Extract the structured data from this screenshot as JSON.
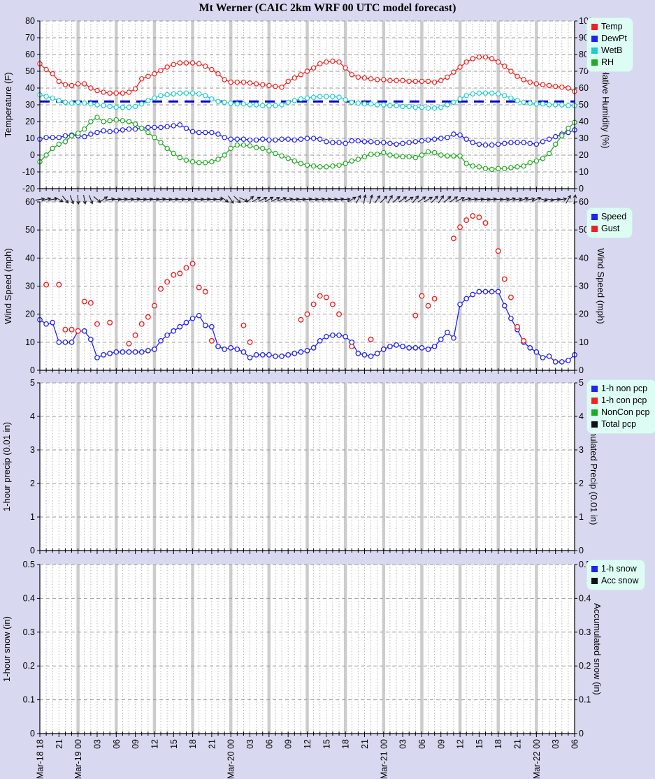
{
  "title": "Mt Werner (CAIC 2km WRF 00 UTC model forecast)",
  "colors": {
    "background": "#d8d8f0",
    "plot_background": "#ffffff",
    "grid_minor": "#b3b3b3",
    "grid_major_band": "#cccccc",
    "grid_horizontal": "#9a9a9a",
    "axis": "#000000",
    "legend_background": "#ddfdf4",
    "temp": "#ee2222",
    "dewpt": "#2222ee",
    "wetb": "#22cccc",
    "rh": "#22aa22",
    "speed": "#2222ee",
    "gust": "#ee2222",
    "freezing_line": "#0000cc",
    "wind_barb": "#1a1a1a"
  },
  "x_axis": {
    "hours_total": 84,
    "tick_every_hours": 3,
    "tick_labels": [
      "Mar-18 18",
      "21",
      "Mar-19 00",
      "03",
      "06",
      "09",
      "12",
      "15",
      "18",
      "21",
      "Mar-20 00",
      "03",
      "06",
      "09",
      "12",
      "15",
      "18",
      "21",
      "Mar-21 00",
      "03",
      "06",
      "09",
      "12",
      "15",
      "18",
      "21",
      "Mar-22 00",
      "03",
      "06"
    ]
  },
  "panels": {
    "temp": {
      "left_axis_label": "Temperature (F)",
      "right_axis_label": "Relative Humidity (%)",
      "left_ticks": [
        "80",
        "70",
        "60",
        "50",
        "40",
        "30",
        "20",
        "10",
        "0",
        "-10",
        "-20"
      ],
      "right_ticks": [
        "100",
        "90",
        "80",
        "70",
        "60",
        "50",
        "40",
        "30",
        "20",
        "10",
        "0"
      ],
      "legend": [
        {
          "label": "Temp",
          "color": "#ee2222"
        },
        {
          "label": "DewPt",
          "color": "#2222ee"
        },
        {
          "label": "WetB",
          "color": "#22cccc"
        },
        {
          "label": "RH",
          "color": "#22aa22"
        }
      ]
    },
    "wind": {
      "left_axis_label": "Wind Speed (mph)",
      "right_axis_label": "Wind Speed (mph)",
      "left_ticks": [
        "60",
        "50",
        "40",
        "30",
        "20",
        "10",
        "0"
      ],
      "right_ticks": [
        "60",
        "50",
        "40",
        "30",
        "20",
        "10",
        "0"
      ],
      "legend": [
        {
          "label": "Speed",
          "color": "#2222ee"
        },
        {
          "label": "Gust",
          "color": "#ee2222"
        }
      ]
    },
    "precip": {
      "left_axis_label": "1-hour precip (0.01 in)",
      "right_axis_label": "Accumulated Precip (0.01 in)",
      "left_ticks": [
        "5",
        "4",
        "3",
        "2",
        "1",
        "0"
      ],
      "right_ticks": [
        "5",
        "4",
        "3",
        "2",
        "1",
        "0"
      ],
      "legend": [
        {
          "label": "1-h non pcp",
          "color": "#2222ee"
        },
        {
          "label": "1-h con pcp",
          "color": "#ee2222"
        },
        {
          "label": "NonCon pcp",
          "color": "#22aa22"
        },
        {
          "label": "Total pcp",
          "color": "#111111"
        }
      ]
    },
    "snow": {
      "left_axis_label": "1-hour snow (in)",
      "right_axis_label": "Accumulated snow (in)",
      "left_ticks": [
        "0.5",
        "0.4",
        "0.3",
        "0.2",
        "0.1",
        "0"
      ],
      "right_ticks": [
        "0.5",
        "0.4",
        "0.3",
        "0.2",
        "0.1",
        "0"
      ],
      "legend": [
        {
          "label": "1-h snow",
          "color": "#2222ee"
        },
        {
          "label": "Acc snow",
          "color": "#111111"
        }
      ]
    }
  },
  "chart_data": [
    {
      "type": "line",
      "panel": "temp",
      "title": "Temperature, dew point, wet bulb (left axis, F) and relative humidity (right axis, %)",
      "x_unit": "hours since Mar-18 18:00 (hourly points, 0-84)",
      "ylim_left": [
        -20,
        80
      ],
      "ylim_right": [
        0,
        100
      ],
      "grid": true,
      "legend_position": "top-right",
      "annotations": {
        "freezing_line_f": 32
      },
      "series": [
        {
          "name": "Temp",
          "axis": "left",
          "color": "#ee2222",
          "values": [
            54.5,
            51,
            48.5,
            44,
            42,
            41.5,
            42.5,
            42.5,
            40,
            38.5,
            37.5,
            37,
            37,
            37,
            37.5,
            39.5,
            45.5,
            47,
            48.5,
            50.5,
            52.5,
            54,
            55,
            55,
            55,
            54.5,
            53,
            51,
            48.5,
            45,
            43.5,
            43.5,
            43.5,
            43,
            42.5,
            42,
            41.5,
            41,
            40.5,
            44,
            46,
            48,
            50,
            52,
            54.5,
            55.5,
            56,
            55.5,
            52,
            48,
            46.5,
            46,
            45.5,
            45,
            45,
            44.5,
            44.5,
            44.5,
            44,
            44,
            44,
            44,
            43.5,
            44.5,
            46.5,
            49.5,
            52.5,
            55.5,
            57.5,
            58.5,
            58.5,
            57.5,
            55.5,
            53,
            50,
            47,
            45,
            43.5,
            42.5,
            42,
            41.5,
            41,
            40.5,
            40,
            38
          ]
        },
        {
          "name": "DewPt",
          "axis": "left",
          "color": "#2222ee",
          "values": [
            9.5,
            10.5,
            10.5,
            10.5,
            11.5,
            12,
            11.5,
            11,
            12.5,
            13.5,
            14.5,
            14,
            14.5,
            15,
            15.5,
            15.5,
            16,
            16.5,
            16.5,
            16.5,
            17,
            17.5,
            18,
            16,
            14,
            13.5,
            13.5,
            13.5,
            12.5,
            10.5,
            9.5,
            9.5,
            9.5,
            9,
            9,
            9.5,
            9,
            9,
            9.5,
            9.5,
            9,
            9.5,
            10,
            10,
            9.5,
            8,
            7.5,
            7.5,
            7,
            8.5,
            8.5,
            8,
            8,
            7.5,
            7.5,
            7,
            6.5,
            7,
            7.5,
            8,
            8.5,
            9,
            9.5,
            10,
            10.5,
            12.5,
            12,
            9.5,
            7.5,
            6.5,
            6,
            6,
            6.5,
            7,
            7.5,
            7.5,
            7.5,
            7,
            6.5,
            8,
            9.5,
            11,
            12.5,
            13.5,
            15
          ]
        },
        {
          "name": "WetB",
          "axis": "left",
          "color": "#22cccc",
          "values": [
            36,
            35,
            34,
            32.5,
            31.5,
            31,
            31.5,
            31,
            30.5,
            30,
            29.5,
            29,
            28.5,
            28.5,
            28.5,
            29,
            30.5,
            32.5,
            34,
            35.5,
            36,
            36.5,
            37,
            37,
            37,
            36.5,
            35.5,
            33.5,
            32,
            31.5,
            31,
            30.5,
            30.5,
            30,
            30,
            29.5,
            29.5,
            29.5,
            30,
            31.5,
            32.5,
            33.5,
            34,
            34.5,
            35,
            35,
            35,
            34.5,
            33,
            31.5,
            31,
            30.5,
            30.5,
            30,
            30,
            29.5,
            29.5,
            29,
            29,
            28.5,
            28.5,
            28,
            28,
            28.5,
            30,
            31.5,
            33.5,
            35.5,
            36.5,
            37,
            37,
            37,
            36.5,
            35.5,
            34,
            32.5,
            31.5,
            31,
            30.5,
            30.5,
            30,
            30,
            30,
            29.5,
            29.5
          ]
        },
        {
          "name": "RH",
          "axis": "right",
          "color": "#22aa22",
          "values": [
            16,
            20,
            24,
            26.5,
            28,
            31.5,
            33,
            35.5,
            40,
            42.5,
            40,
            40.5,
            41,
            40.5,
            40,
            38.5,
            36,
            33.5,
            30.5,
            27.5,
            24,
            21,
            18.5,
            17,
            16,
            15.5,
            15.5,
            16,
            17.5,
            20,
            24,
            26,
            26,
            25.5,
            24.5,
            24,
            22.5,
            21,
            19.5,
            18,
            16.5,
            15,
            14,
            13.5,
            13,
            13,
            13.5,
            14,
            15,
            16.5,
            17.5,
            19,
            20.5,
            20.5,
            21.5,
            20,
            19.5,
            19,
            19,
            18.5,
            20,
            22,
            21.5,
            20,
            19.5,
            19.5,
            19.5,
            15,
            13.5,
            13,
            12,
            11.5,
            12,
            12,
            12.5,
            13,
            13.5,
            15.5,
            16.5,
            18,
            21,
            26.5,
            31.5,
            36,
            39.5
          ]
        }
      ]
    },
    {
      "type": "line",
      "panel": "wind",
      "title": "Wind speed (line), gusts (points) and direction barbs",
      "x_unit": "hours since Mar-18 18:00 (hourly points, 0-84)",
      "ylim": [
        0,
        60
      ],
      "grid": true,
      "legend_position": "top-right",
      "series": [
        {
          "name": "Speed",
          "color": "#2222ee",
          "values": [
            18,
            16.5,
            17,
            10,
            10,
            10,
            14,
            14,
            11,
            4.5,
            5.5,
            6,
            6.5,
            6.5,
            6.5,
            6.5,
            6.5,
            7,
            7.5,
            10.5,
            12.5,
            14,
            15.5,
            17,
            18.5,
            19.5,
            16,
            15.5,
            8.5,
            7.5,
            8,
            7.5,
            6.5,
            4.5,
            5.5,
            5.5,
            5.5,
            5,
            5,
            5.5,
            6,
            6.5,
            7,
            8,
            10.5,
            12,
            12.5,
            12.5,
            12,
            10,
            6,
            5.5,
            5,
            6,
            7.5,
            8.5,
            9,
            8.5,
            8,
            8,
            8,
            7.5,
            8.5,
            11,
            13.5,
            11.5,
            23.5,
            25.5,
            27,
            28,
            28,
            28,
            28,
            23,
            18.5,
            14.5,
            10,
            8,
            6.5,
            4.5,
            5,
            3,
            3,
            3.5,
            5.5
          ]
        }
      ],
      "gust_points_hour_value": [
        [
          1,
          30.5
        ],
        [
          3,
          30.5
        ],
        [
          4,
          14.5
        ],
        [
          5,
          14.5
        ],
        [
          6,
          14
        ],
        [
          7,
          24.5
        ],
        [
          8,
          24
        ],
        [
          9,
          16.5
        ],
        [
          11,
          17
        ],
        [
          14,
          9.5
        ],
        [
          15,
          12.5
        ],
        [
          16,
          16.5
        ],
        [
          17,
          19
        ],
        [
          18,
          23
        ],
        [
          19,
          29
        ],
        [
          20,
          31.5
        ],
        [
          21,
          34
        ],
        [
          22,
          34.5
        ],
        [
          23,
          36.5
        ],
        [
          24,
          38
        ],
        [
          25,
          29.5
        ],
        [
          26,
          28
        ],
        [
          27,
          10.5
        ],
        [
          32,
          16
        ],
        [
          33,
          10
        ],
        [
          41,
          18
        ],
        [
          42,
          20
        ],
        [
          43,
          23.5
        ],
        [
          44,
          26.5
        ],
        [
          45,
          26
        ],
        [
          46,
          23.5
        ],
        [
          47,
          20
        ],
        [
          49,
          8.5
        ],
        [
          52,
          11
        ],
        [
          59,
          19.5
        ],
        [
          60,
          26.5
        ],
        [
          61,
          23
        ],
        [
          62,
          25.5
        ],
        [
          65,
          47
        ],
        [
          66,
          51
        ],
        [
          67,
          53.5
        ],
        [
          68,
          55
        ],
        [
          69,
          54.5
        ],
        [
          70,
          52.5
        ],
        [
          72,
          42.5
        ],
        [
          73,
          32.5
        ],
        [
          74,
          26
        ],
        [
          75,
          15.5
        ],
        [
          76,
          10.5
        ]
      ],
      "wind_direction_deg_ccw_from_east": [
        10,
        15,
        10,
        -30,
        -50,
        -70,
        -85,
        -80,
        -70,
        -40,
        35,
        10,
        5,
        10,
        8,
        10,
        5,
        8,
        5,
        10,
        5,
        8,
        5,
        5,
        10,
        5,
        8,
        5,
        5,
        -35,
        -55,
        -45,
        -25,
        40,
        30,
        25,
        30,
        25,
        20,
        10,
        8,
        5,
        10,
        5,
        10,
        8,
        5,
        10,
        5,
        30,
        60,
        80,
        75,
        55,
        45,
        60,
        40,
        35,
        30,
        50,
        35,
        30,
        45,
        55,
        40,
        35,
        25,
        15,
        10,
        8,
        5,
        10,
        5,
        10,
        15,
        10,
        20,
        10,
        25,
        -15,
        -10,
        5,
        10,
        60,
        80
      ]
    },
    {
      "type": "line",
      "panel": "precip",
      "title": "1-hour and accumulated precipitation",
      "ylim": [
        0,
        5
      ],
      "grid": true,
      "legend_position": "top-right",
      "series": [],
      "note": "no precipitation values plotted (all zero / absent)"
    },
    {
      "type": "line",
      "panel": "snow",
      "title": "1-hour and accumulated snow",
      "ylim": [
        0,
        0.5
      ],
      "grid": true,
      "legend_position": "top-right",
      "series": [],
      "note": "no snow values plotted (all zero / absent)"
    }
  ]
}
